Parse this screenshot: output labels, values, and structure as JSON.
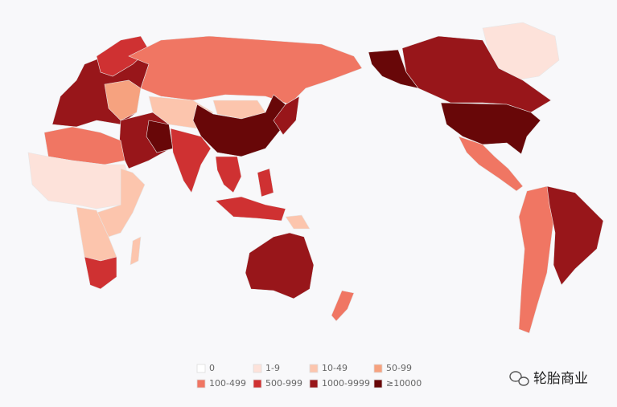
{
  "legend": {
    "items": [
      {
        "label": "0",
        "color": "#ffffff"
      },
      {
        "label": "1-9",
        "color": "#fde2da"
      },
      {
        "label": "10-49",
        "color": "#fcc5ad"
      },
      {
        "label": "50-99",
        "color": "#f6a27f"
      },
      {
        "label": "100-499",
        "color": "#f07663"
      },
      {
        "label": "500-999",
        "color": "#cf3132"
      },
      {
        "label": "1000-9999",
        "color": "#98161a"
      },
      {
        "label": "≥10000",
        "color": "#680708"
      }
    ]
  },
  "watermark": "轮胎商业"
}
